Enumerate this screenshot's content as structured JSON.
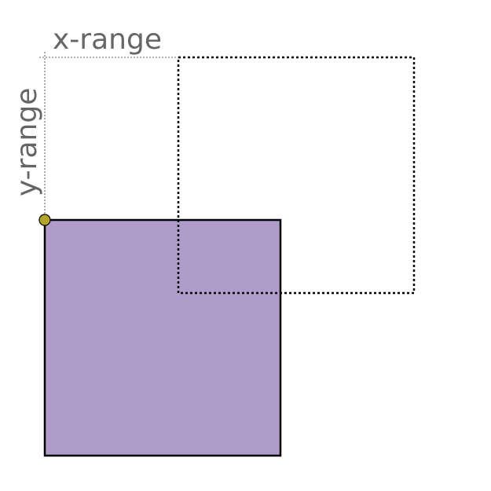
{
  "labels": {
    "x_range": "x-range",
    "y_range": "y-range"
  },
  "colors": {
    "fill": "#b09ccb",
    "stroke": "#000000",
    "dotted_outline": "#000000",
    "range_guide": "#9a9a9a",
    "label_text": "#666666",
    "anchor_dot": "#b5a32a"
  }
}
